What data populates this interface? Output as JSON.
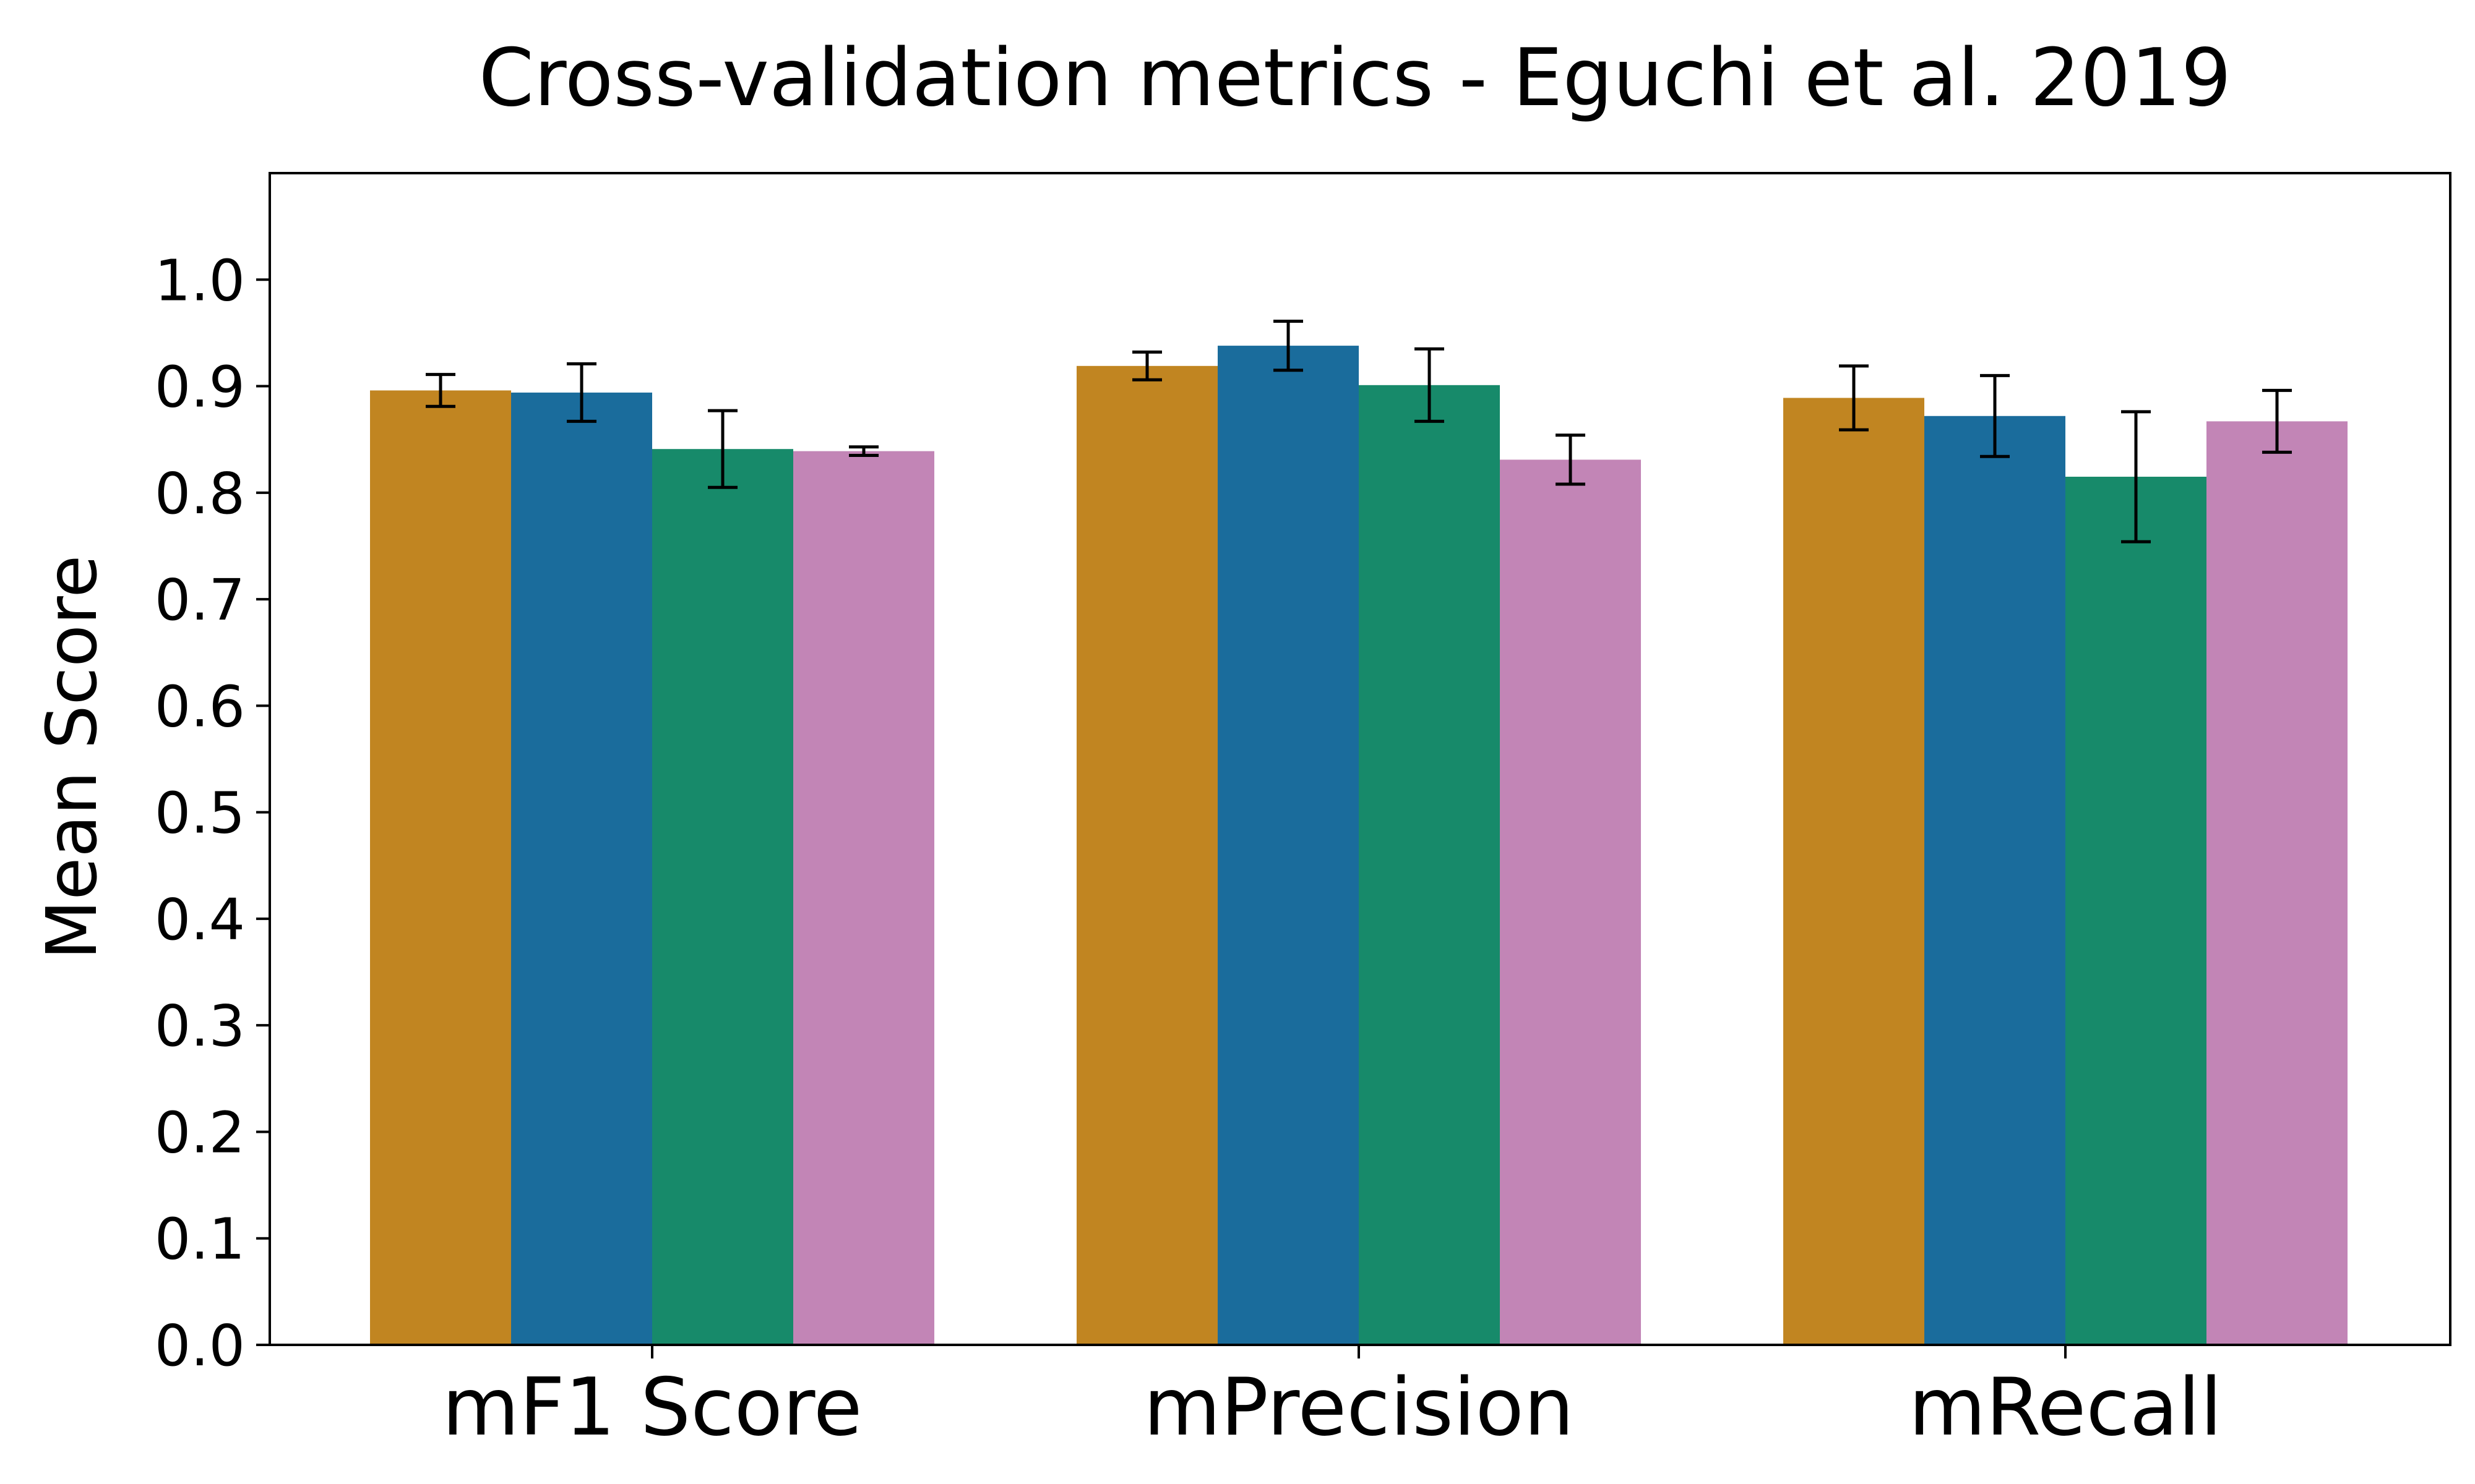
{
  "chart_data": {
    "type": "bar",
    "title": "Cross-validation metrics - Eguchi et al. 2019",
    "xlabel": "",
    "ylabel": "Mean Score",
    "categories": [
      "mF1 Score",
      "mPrecision",
      "mRecall"
    ],
    "ylim": [
      0.0,
      1.1
    ],
    "yticks": [
      "0.0",
      "0.1",
      "0.2",
      "0.3",
      "0.4",
      "0.5",
      "0.6",
      "0.7",
      "0.8",
      "0.9",
      "1.0"
    ],
    "grid": false,
    "legend": "none",
    "series": [
      {
        "color": "#C18521",
        "values": [
          0.896,
          0.919,
          0.889
        ],
        "errors": [
          0.015,
          0.013,
          0.03
        ]
      },
      {
        "color": "#1A6C9C",
        "values": [
          0.894,
          0.938,
          0.872
        ],
        "errors": [
          0.027,
          0.023,
          0.038
        ]
      },
      {
        "color": "#178A6A",
        "values": [
          0.841,
          0.901,
          0.815
        ],
        "errors": [
          0.036,
          0.034,
          0.061
        ]
      },
      {
        "color": "#C285B6",
        "values": [
          0.839,
          0.831,
          0.867
        ],
        "errors": [
          0.004,
          0.023,
          0.029
        ]
      }
    ]
  }
}
